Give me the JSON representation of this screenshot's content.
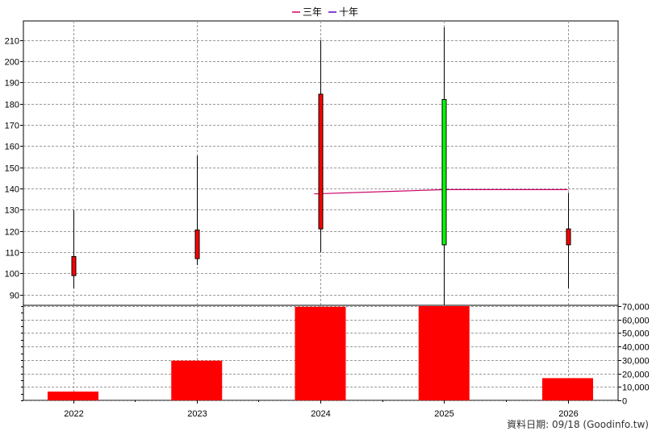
{
  "chart_data": {
    "type": "candlestick-with-volume",
    "legend": [
      {
        "label": "三年",
        "color": "#cc0066"
      },
      {
        "label": "十年",
        "color": "#6600cc"
      }
    ],
    "years": [
      "2022",
      "2023",
      "2024",
      "2025",
      "2026"
    ],
    "price_axis": {
      "ticks": [
        90,
        100,
        110,
        120,
        130,
        140,
        150,
        160,
        170,
        180,
        190,
        200,
        210
      ],
      "min": 85,
      "max": 219
    },
    "volume_axis": {
      "ticks": [
        "0",
        "10,000",
        "20,000",
        "30,000",
        "40,000",
        "50,000",
        "60,000",
        "70,000"
      ],
      "min": 0,
      "max": 70000
    },
    "candles": [
      {
        "year": "2022",
        "open": 99,
        "close": 108,
        "high": 130,
        "low": 93,
        "color": "#ff0000"
      },
      {
        "year": "2023",
        "open": 107,
        "close": 120.5,
        "high": 155.5,
        "low": 104,
        "color": "#ff0000"
      },
      {
        "year": "2024",
        "open": 121,
        "close": 184.5,
        "high": 210,
        "low": 110,
        "color": "#ff0000"
      },
      {
        "year": "2025",
        "open": 182,
        "close": 113.5,
        "high": 216,
        "low": 85,
        "color": "#00ff00"
      },
      {
        "year": "2026",
        "open": 113.5,
        "close": 121,
        "high": 138,
        "low": 93,
        "color": "#ff0000"
      }
    ],
    "three_year_avg_line": [
      {
        "x": 2023.95,
        "y": 137.5
      },
      {
        "x": 2025.0,
        "y": 139.5
      },
      {
        "x": 2026.0,
        "y": 139.5
      }
    ],
    "volume": [
      {
        "year": "2022",
        "value": 6500
      },
      {
        "year": "2023",
        "value": 29500
      },
      {
        "year": "2024",
        "value": 69500
      },
      {
        "year": "2025",
        "value": 70000
      },
      {
        "year": "2026",
        "value": 16500
      }
    ],
    "grid": true
  },
  "footer": "資料日期: 09/18  (Goodinfo.tw)"
}
